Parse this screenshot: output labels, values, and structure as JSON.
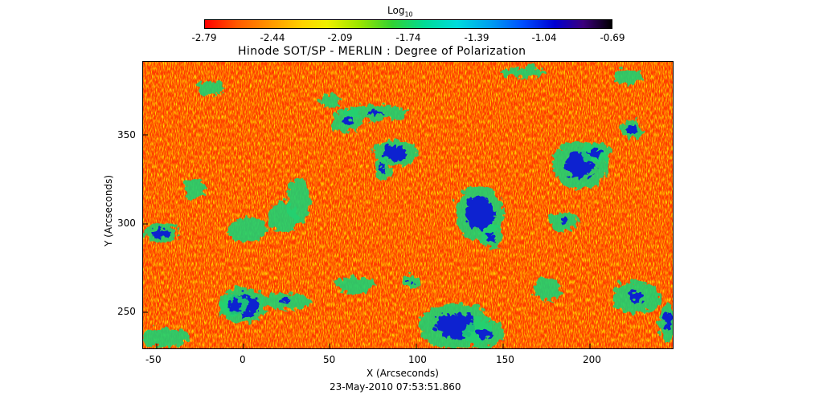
{
  "colorbar": {
    "title_main": "Log",
    "title_sub": "10",
    "ticks": [
      "-2.79",
      "-2.44",
      "-2.09",
      "-1.74",
      "-1.39",
      "-1.04",
      "-0.69"
    ]
  },
  "plot": {
    "title": "Hinode SOT/SP - MERLIN : Degree of Polarization",
    "x_label": "X (Arcseconds)",
    "y_label": "Y (Arcseconds)",
    "x_ticks": [
      "-50",
      "0",
      "50",
      "100",
      "150",
      "200"
    ],
    "y_ticks": [
      "250",
      "300",
      "350"
    ],
    "timestamp": "23-May-2010 07:53:51.860"
  },
  "colors": {
    "background_field": "#ff3a00",
    "speckle": "#ffb000",
    "contour_green": "#20d070",
    "patch_blue": "#1020d0"
  }
}
